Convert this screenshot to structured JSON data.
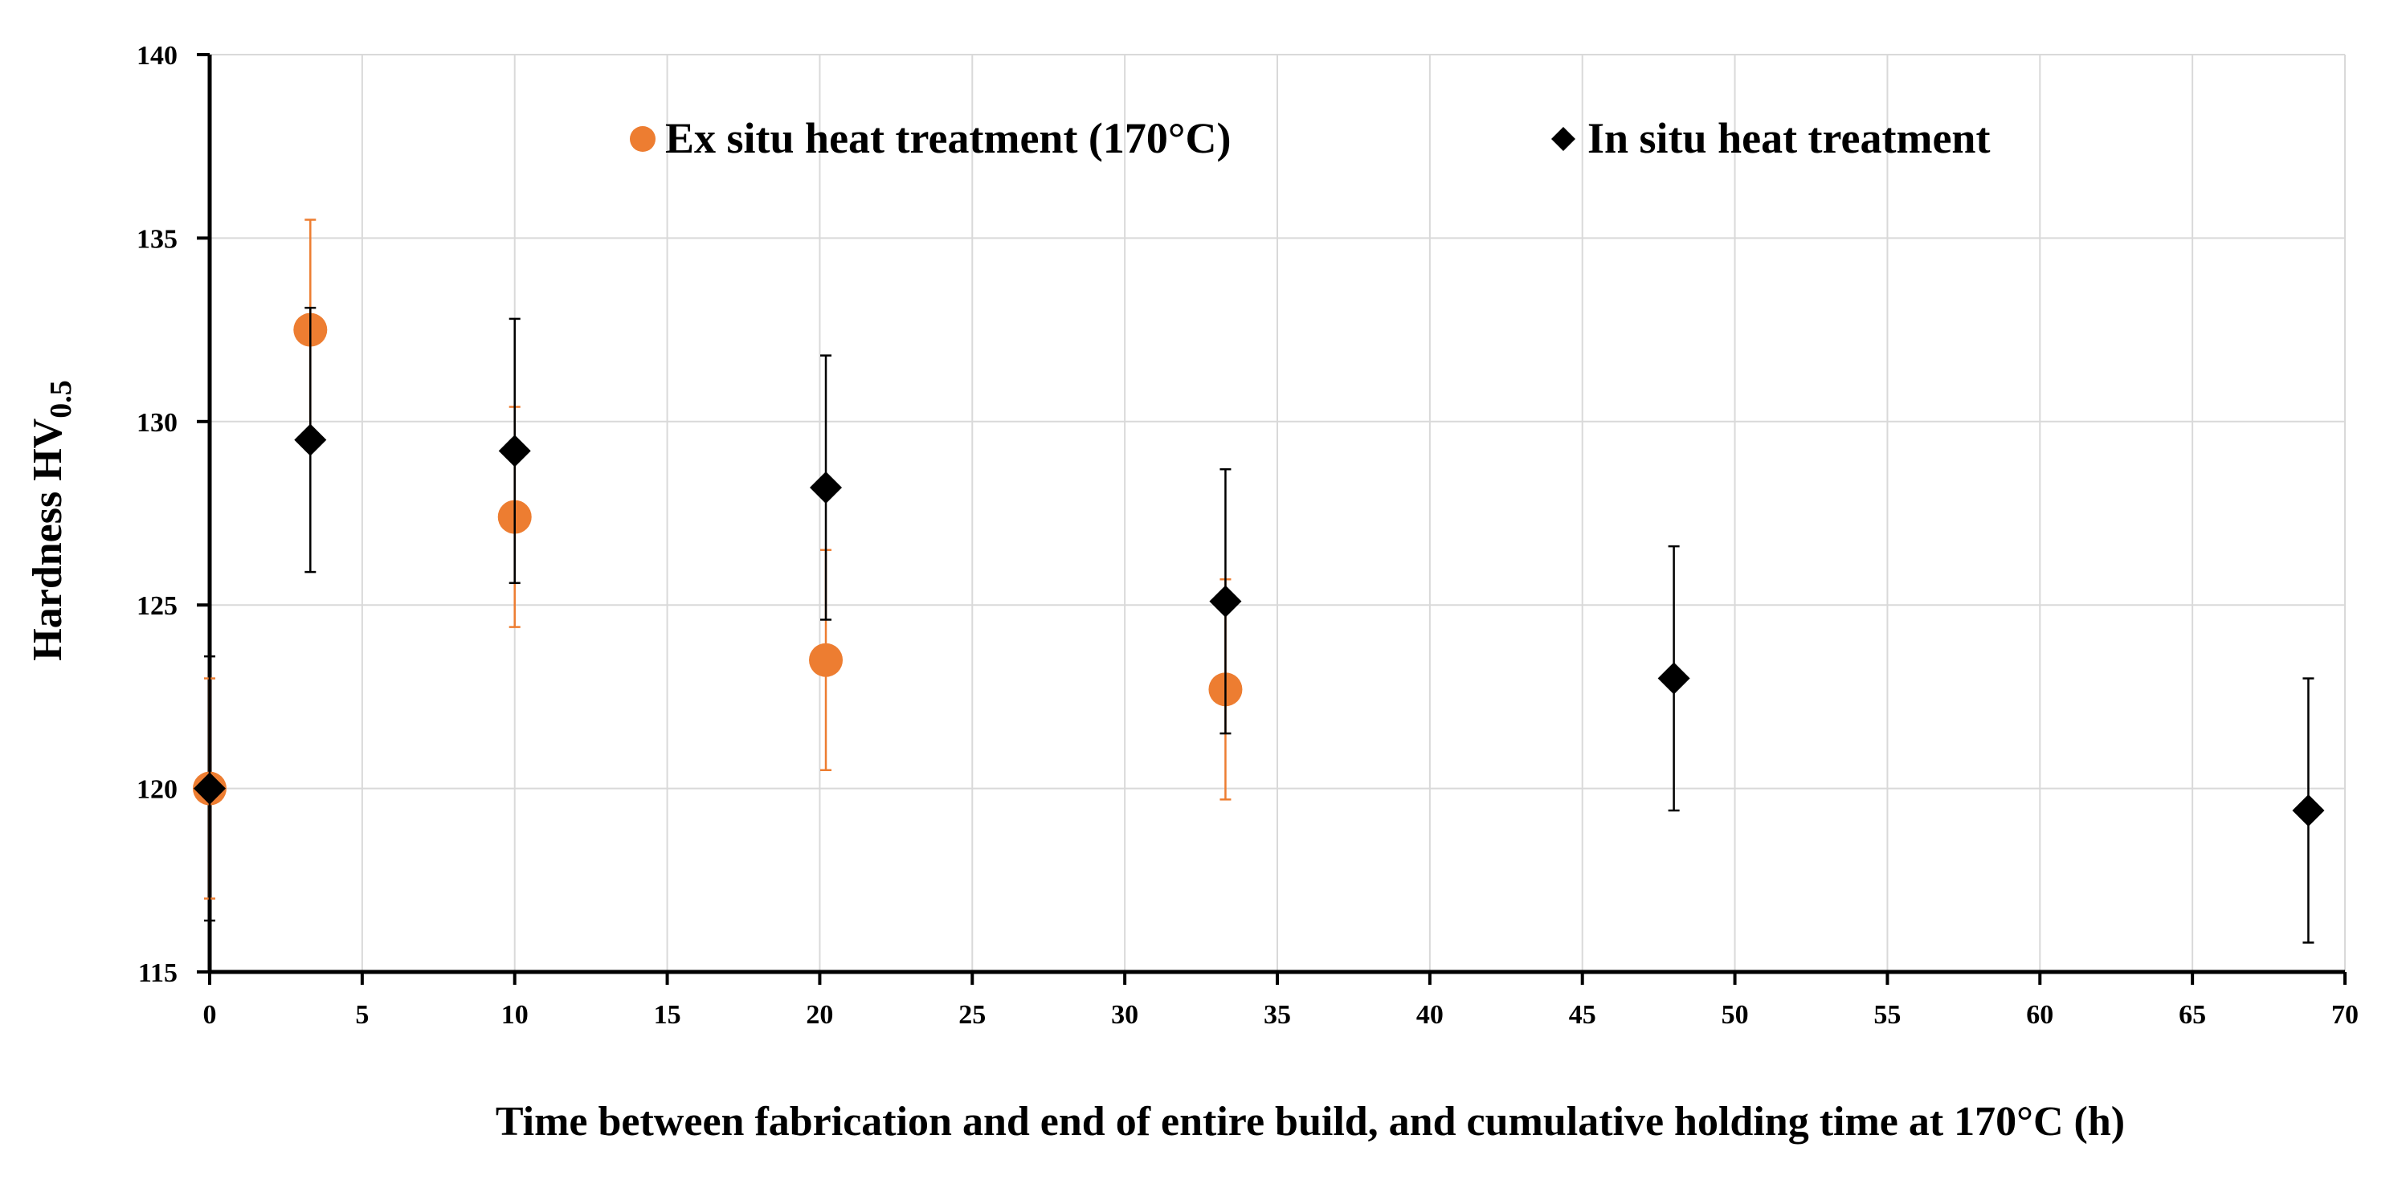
{
  "chart_data": {
    "type": "scatter",
    "title": "",
    "xlabel": "Time between fabrication and end of entire build, and cumulative holding time at 170°C (h)",
    "ylabel_main": "Hardness HV",
    "ylabel_sub": "0.5",
    "xlim": [
      0,
      70
    ],
    "ylim": [
      115,
      140
    ],
    "xticks": [
      0,
      5,
      10,
      15,
      20,
      25,
      30,
      35,
      40,
      45,
      50,
      55,
      60,
      65,
      70
    ],
    "yticks": [
      115,
      120,
      125,
      130,
      135,
      140
    ],
    "grid": true,
    "legend_position": "top",
    "series": [
      {
        "name": "Ex situ heat treatment (170°C)",
        "marker": "circle",
        "color": "#ED7D31",
        "points": [
          {
            "x": 0,
            "y": 120.0,
            "err": 3.0
          },
          {
            "x": 3.3,
            "y": 132.5,
            "err": 3.0
          },
          {
            "x": 10,
            "y": 127.4,
            "err": 3.0
          },
          {
            "x": 20.2,
            "y": 123.5,
            "err": 3.0
          },
          {
            "x": 33.3,
            "y": 122.7,
            "err": 3.0
          }
        ]
      },
      {
        "name": "In situ heat treatment",
        "marker": "diamond",
        "color": "#000000",
        "points": [
          {
            "x": 0,
            "y": 120.0,
            "err": 3.6
          },
          {
            "x": 3.3,
            "y": 129.5,
            "err": 3.6
          },
          {
            "x": 10,
            "y": 129.2,
            "err": 3.6
          },
          {
            "x": 20.2,
            "y": 128.2,
            "err": 3.6
          },
          {
            "x": 33.3,
            "y": 125.1,
            "err": 3.6
          },
          {
            "x": 48,
            "y": 123.0,
            "err": 3.6
          },
          {
            "x": 68.8,
            "y": 119.4,
            "err": 3.6
          }
        ]
      }
    ]
  }
}
